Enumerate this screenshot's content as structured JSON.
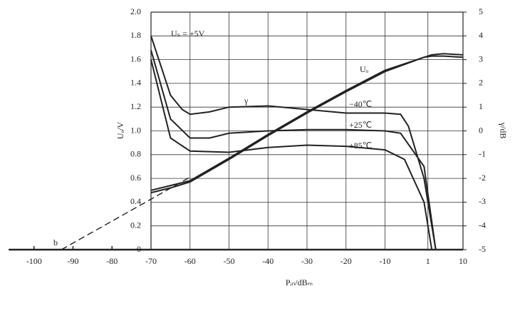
{
  "chart_data": {
    "type": "line",
    "x_label": "Pᵢₙ/dBₘ",
    "y_label": "Uₒ/V",
    "y2_label": "γ/dB",
    "xlim": [
      -106.5,
      10
    ],
    "xticks": [
      -100,
      -90,
      -80,
      -70,
      -60,
      -50,
      -40,
      -30,
      -20,
      -10,
      1,
      10
    ],
    "ylim": [
      0,
      2
    ],
    "yticks": [
      0,
      0.2,
      0.4,
      0.6,
      0.8,
      {
        "value": 1,
        "label": "1.0"
      },
      1.2,
      1.4,
      1.6,
      1.8,
      {
        "value": 2,
        "label": "2.0"
      }
    ],
    "y2lim": [
      -5,
      5
    ],
    "y2ticks": [
      -5,
      -4,
      -3,
      -2,
      -1,
      0,
      1,
      2,
      3,
      4,
      5
    ],
    "grid": true,
    "annotations": [
      "Uₛ = +5V",
      "Uₒ",
      "γ",
      "−40℃",
      "+25℃",
      "+85℃",
      "b"
    ],
    "series": [
      {
        "color": "#222",
        "style": "dashed",
        "x": [
          -93,
          -60
        ],
        "values": [
          0,
          0.61
        ]
      },
      {
        "color": "#222",
        "style": "solid",
        "x": [
          -70,
          -65,
          -60,
          -50,
          -40,
          -30,
          -20,
          -10,
          0,
          2,
          5,
          10
        ],
        "values": [
          0.48,
          0.52,
          0.57,
          0.76,
          0.96,
          1.15,
          1.33,
          1.5,
          1.62,
          1.64,
          1.65,
          1.64
        ]
      },
      {
        "color": "#222",
        "style": "solid",
        "x": [
          -70,
          -65,
          -60,
          -50,
          -40,
          -30,
          -20,
          -10,
          0,
          2,
          5,
          10
        ],
        "values": [
          0.5,
          0.54,
          0.58,
          0.77,
          0.97,
          1.16,
          1.34,
          1.51,
          1.62,
          1.63,
          1.63,
          1.62
        ]
      },
      {
        "color": "#222",
        "style": "solid",
        "axis": "y2",
        "x": [
          -70,
          -65,
          -62,
          -60,
          -55,
          -50,
          -40,
          -30,
          -20,
          -10,
          -6,
          -4,
          0,
          3
        ],
        "values": [
          4,
          1.5,
          0.9,
          0.7,
          0.8,
          1,
          1.05,
          0.9,
          0.75,
          0.75,
          0.7,
          0.2,
          -2,
          -5
        ]
      },
      {
        "color": "#222",
        "style": "solid",
        "axis": "y2",
        "x": [
          -70,
          -65,
          -60,
          -55,
          -50,
          -40,
          -30,
          -20,
          -10,
          -6,
          0,
          3
        ],
        "values": [
          3.4,
          0.5,
          -0.3,
          -0.3,
          -0.1,
          0,
          0.05,
          0.05,
          0,
          -0.1,
          -1.5,
          -5
        ]
      },
      {
        "color": "#222",
        "style": "solid",
        "axis": "y2",
        "x": [
          -70,
          -65,
          -60,
          -50,
          -40,
          -30,
          -20,
          -10,
          -5,
          0,
          2
        ],
        "values": [
          3,
          -0.3,
          -0.85,
          -0.9,
          -0.7,
          -0.6,
          -0.65,
          -0.8,
          -1.2,
          -3,
          -5
        ]
      }
    ]
  }
}
